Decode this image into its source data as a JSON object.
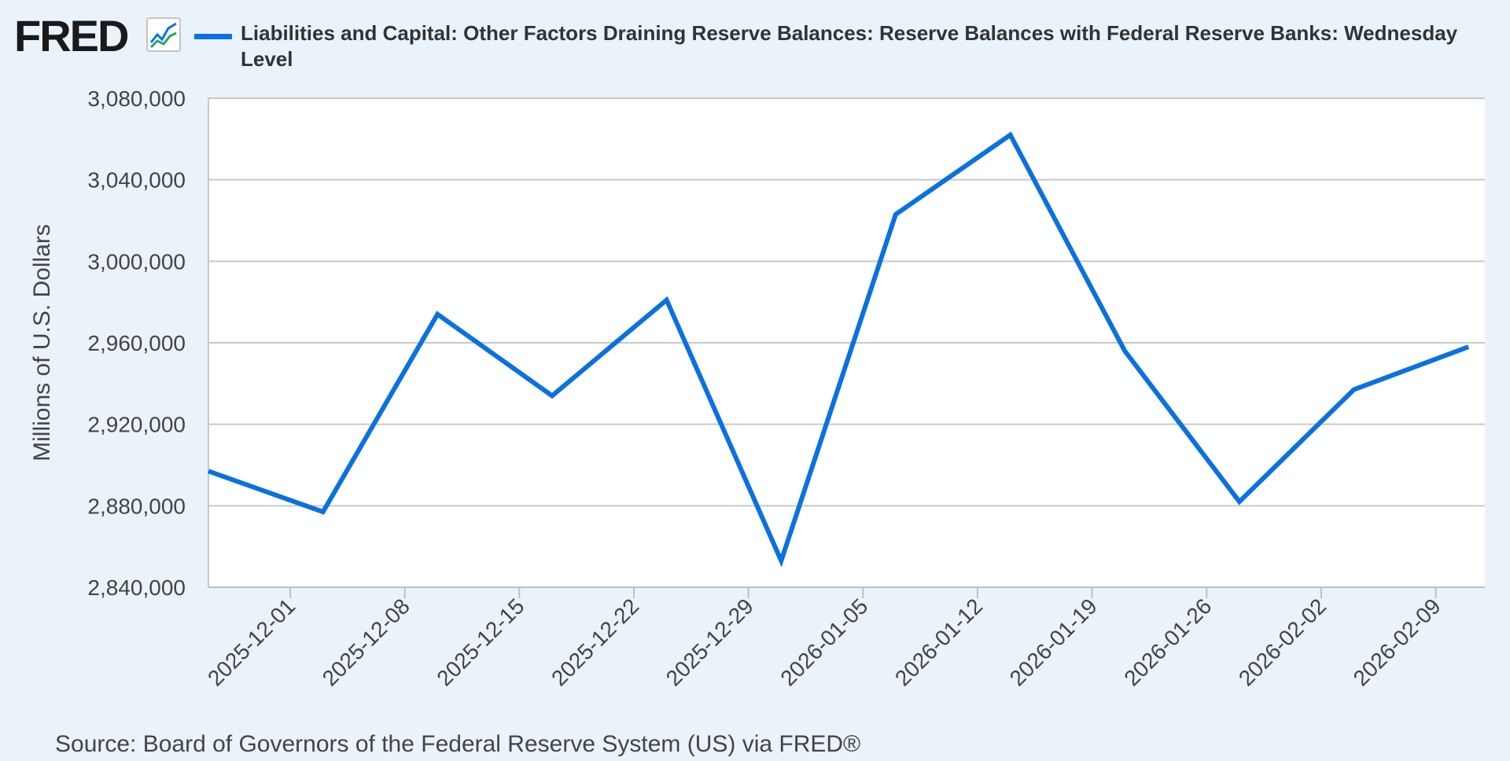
{
  "header": {
    "logo_text": "FRED",
    "legend_label": "Liabilities and Capital: Other Factors Draining Reserve Balances: Reserve Balances with Federal Reserve Banks: Wednesday Level"
  },
  "colors": {
    "series": "#0a71e0",
    "grid": "#c8c8c8",
    "plot_bg": "#ffffff",
    "page_bg": "#eaf2fa"
  },
  "source": "Source: Board of Governors of the Federal Reserve System (US) via FRED®",
  "chart_data": {
    "type": "line",
    "ylabel": "Millions of U.S. Dollars",
    "ylim": [
      2840000,
      3080000
    ],
    "yticks": [
      2840000,
      2880000,
      2920000,
      2960000,
      3000000,
      3040000,
      3080000
    ],
    "ytick_labels": [
      "2,840,000",
      "2,880,000",
      "2,920,000",
      "2,960,000",
      "3,000,000",
      "3,040,000",
      "3,080,000"
    ],
    "xlim": [
      "2025-11-26",
      "2026-02-12"
    ],
    "xtick_labels": [
      "2025-12-01",
      "2025-12-08",
      "2025-12-15",
      "2025-12-22",
      "2025-12-29",
      "2026-01-05",
      "2026-01-12",
      "2026-01-19",
      "2026-01-26",
      "2026-02-02",
      "2026-02-09"
    ],
    "grid": true,
    "series": [
      {
        "x": [
          "2025-11-26",
          "2025-12-03",
          "2025-12-10",
          "2025-12-17",
          "2025-12-24",
          "2025-12-31",
          "2026-01-07",
          "2026-01-14",
          "2026-01-21",
          "2026-01-28",
          "2026-02-04",
          "2026-02-11"
        ],
        "values": [
          2897000,
          2877000,
          2974000,
          2934000,
          2981000,
          2853000,
          3023000,
          3062000,
          2956000,
          2882000,
          2937000,
          2958000
        ]
      }
    ]
  }
}
